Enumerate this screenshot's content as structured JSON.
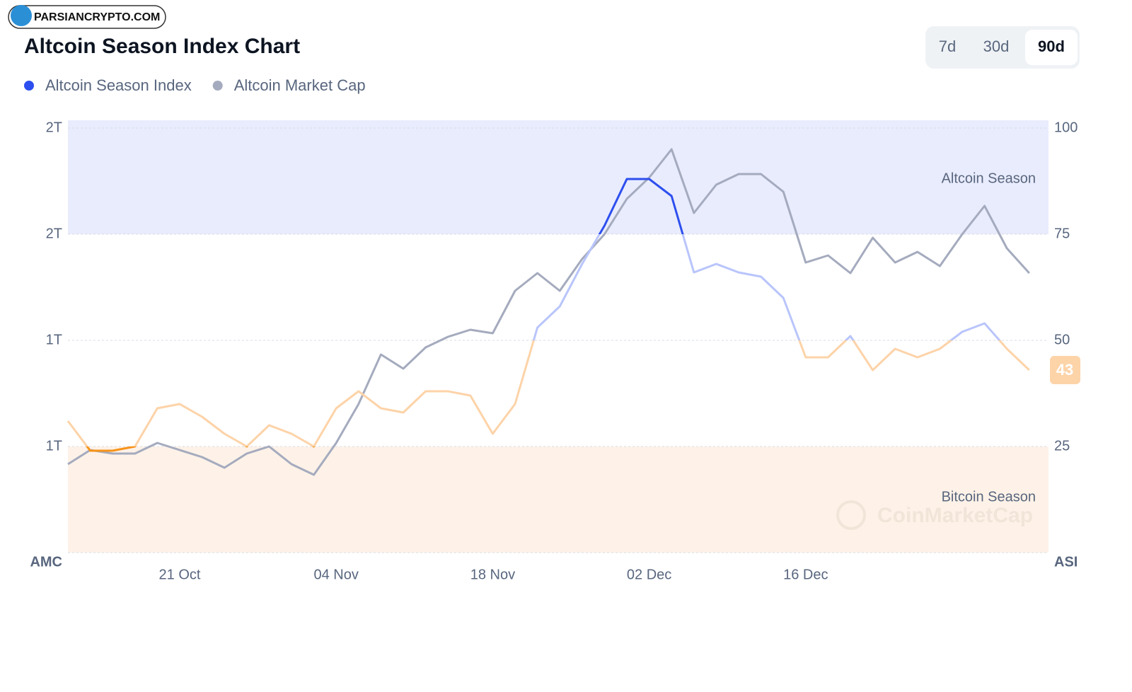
{
  "watermark": "PARSIANCRYPTO.COM",
  "range_buttons": [
    "7d",
    "30d",
    "90d"
  ],
  "selected_range_index": 2,
  "chart_data": {
    "type": "line",
    "title": "Altcoin Season Index Chart",
    "y_label": "AMC",
    "y2_label": "ASI",
    "brand_watermark": "CoinMarketCap",
    "categories": [
      null,
      null,
      null,
      null,
      null,
      "21 Oct",
      null,
      null,
      null,
      null,
      null,
      null,
      "04 Nov",
      null,
      null,
      null,
      null,
      null,
      null,
      "18 Nov",
      null,
      null,
      null,
      null,
      null,
      null,
      "02 Dec",
      null,
      null,
      null,
      null,
      null,
      null,
      "16 Dec",
      null,
      null,
      null,
      null,
      null,
      null,
      null,
      null,
      null,
      null
    ],
    "series": [
      {
        "name": "Altcoin Season Index",
        "color": "#2d4fef",
        "axis": "y2",
        "values": [
          31,
          24,
          24,
          25,
          34,
          35,
          32,
          28,
          25,
          30,
          28,
          25,
          34,
          38,
          34,
          33,
          38,
          38,
          37,
          28,
          35,
          53,
          58,
          68,
          77,
          88,
          88,
          84,
          66,
          68,
          66,
          65,
          60,
          46,
          46,
          51,
          43,
          48,
          46,
          48,
          52,
          54,
          48,
          43
        ],
        "line_colors": [
          {
            "from": 75,
            "color": "#2d4fef"
          },
          {
            "from": 50,
            "color": "#b9c5fb"
          },
          {
            "from": 25,
            "color": "#fdd3a8"
          },
          {
            "from": 0,
            "color": "#f7931a"
          }
        ]
      },
      {
        "name": "Altcoin Market Cap",
        "color": "#a5abbe",
        "values": [
          0.85,
          0.89,
          0.88,
          0.88,
          0.91,
          0.89,
          0.87,
          0.84,
          0.88,
          0.9,
          0.85,
          0.82,
          0.91,
          1.02,
          1.16,
          1.12,
          1.18,
          1.21,
          1.23,
          1.22,
          1.34,
          1.39,
          1.34,
          1.43,
          1.5,
          1.6,
          1.66,
          1.74,
          1.56,
          1.64,
          1.67,
          1.67,
          1.62,
          1.42,
          1.44,
          1.39,
          1.49,
          1.42,
          1.45,
          1.41,
          1.5,
          1.58,
          1.46,
          1.39
        ]
      }
    ],
    "ylim": [
      0.6,
      1.8
    ],
    "yticks": [
      {
        "value": 0.9,
        "label": "1T"
      },
      {
        "value": 1.2,
        "label": "1T"
      },
      {
        "value": 1.5,
        "label": "2T"
      },
      {
        "value": 1.8,
        "label": "2T"
      }
    ],
    "y2lim": [
      0,
      100
    ],
    "y2ticks": [
      25,
      50,
      75,
      100
    ],
    "grid": true,
    "zones": [
      {
        "label": "Altcoin Season",
        "from": 75,
        "to": 100,
        "color": "#e9ecfd"
      },
      {
        "label": "Bitcoin Season",
        "from": 0,
        "to": 25,
        "color": "#fef2e8"
      }
    ]
  }
}
